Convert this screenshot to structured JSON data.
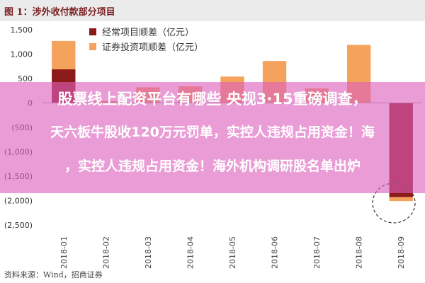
{
  "figure_title": "图 1：涉外收付款部分项目",
  "source": "资料来源：Wind，招商证券",
  "overlay": {
    "line1": "股票线上配资平台有哪些 央视3·15重磅调查，",
    "line2": "天六板牛股收120万元罚单，实控人违规占用资金！海",
    "line3": "，实控人违规占用资金！海外机构调研股名单出炉"
  },
  "chart_data": {
    "type": "bar",
    "categories": [
      "2018-01",
      "2018-02",
      "2018-03",
      "2018-04",
      "2018-05",
      "2018-06",
      "2018-07",
      "2018-08",
      "2018-09"
    ],
    "series": [
      {
        "name": "经常项目顺差（亿元）",
        "color": "#8b1a1a",
        "values": [
          690,
          null,
          null,
          null,
          null,
          null,
          null,
          null,
          -1930
        ]
      },
      {
        "name": "证券投资项顺差（亿元）",
        "color": "#f5a35c",
        "values": [
          580,
          40,
          320,
          340,
          540,
          860,
          300,
          1190,
          -80
        ]
      }
    ],
    "yticks": [
      1500,
      1000,
      500,
      0,
      -500,
      -1000,
      -1500,
      -2000,
      -2500
    ],
    "ytick_labels": [
      "1,500",
      "1,000",
      "500",
      "0",
      "(500)",
      "(1,000)",
      "(1,500)",
      "(2,000)",
      "(2,500)"
    ],
    "ylim": [
      -2500,
      1500
    ],
    "grid": false,
    "legend_position": "top-left"
  }
}
